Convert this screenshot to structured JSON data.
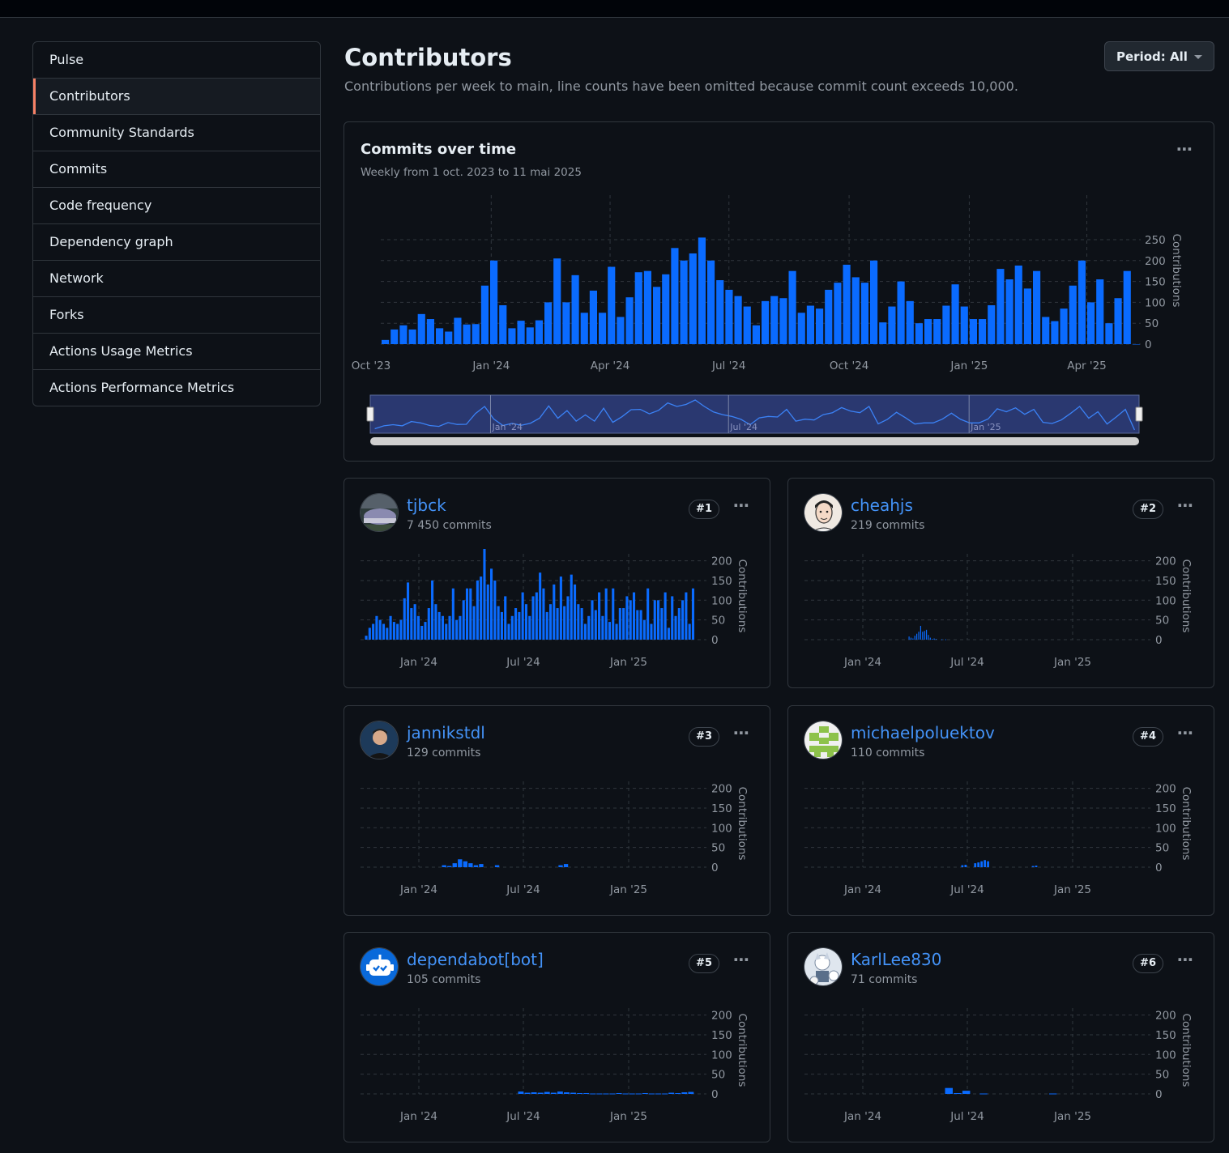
{
  "sidebar": {
    "items": [
      {
        "label": "Pulse"
      },
      {
        "label": "Contributors"
      },
      {
        "label": "Community Standards"
      },
      {
        "label": "Commits"
      },
      {
        "label": "Code frequency"
      },
      {
        "label": "Dependency graph"
      },
      {
        "label": "Network"
      },
      {
        "label": "Forks"
      },
      {
        "label": "Actions Usage Metrics"
      },
      {
        "label": "Actions Performance Metrics"
      }
    ],
    "active_index": 1
  },
  "header": {
    "title": "Contributors",
    "subtitle": "Contributions per week to main, line counts have been omitted because commit count exceeds 10,000.",
    "period_label": "Period: All"
  },
  "main_chart": {
    "title": "Commits over time",
    "subtitle": "Weekly from 1 oct. 2023 to 11 mai 2025",
    "more_label": "..."
  },
  "colors": {
    "bar": "#0a6bff",
    "accent_link": "#4493f8",
    "active_border": "#f78166",
    "brush_fill": "#2a3870"
  },
  "chart_data": [
    {
      "type": "bar",
      "title": "Commits over time",
      "ylabel": "Contributions",
      "x_ticks": [
        "Oct '23",
        "Jan '24",
        "Apr '24",
        "Jul '24",
        "Oct '24",
        "Jan '25",
        "Apr '25"
      ],
      "y_ticks": [
        0,
        50,
        100,
        150,
        200,
        250
      ],
      "ylim": [
        0,
        310
      ],
      "x_range": [
        "2023-10-01",
        "2025-05-11"
      ],
      "navigator_ticks": [
        "Jan '24",
        "Jul '24",
        "Jan '25"
      ],
      "values": [
        10,
        35,
        45,
        35,
        72,
        60,
        38,
        30,
        63,
        47,
        48,
        140,
        200,
        93,
        38,
        56,
        40,
        57,
        100,
        205,
        100,
        165,
        75,
        128,
        75,
        185,
        65,
        112,
        172,
        175,
        137,
        167,
        230,
        200,
        217,
        255,
        200,
        153,
        130,
        115,
        90,
        45,
        103,
        115,
        110,
        175,
        75,
        92,
        85,
        130,
        147,
        190,
        160,
        147,
        200,
        52,
        90,
        150,
        103,
        50,
        60,
        60,
        92,
        143,
        90,
        60,
        60,
        93,
        180,
        155,
        188,
        133,
        175,
        65,
        55,
        85,
        140,
        200,
        100,
        155,
        50,
        110,
        175,
        0
      ]
    },
    {
      "type": "bar",
      "series_name": "tjbck",
      "ylabel": "Contributions",
      "x_ticks": [
        "Jan '24",
        "Jul '24",
        "Jan '25"
      ],
      "y_ticks": [
        0,
        50,
        100,
        150,
        200
      ],
      "ylim": [
        0,
        230
      ],
      "values": [
        10,
        30,
        40,
        60,
        50,
        40,
        30,
        60,
        45,
        40,
        50,
        105,
        145,
        80,
        90,
        60,
        35,
        45,
        80,
        150,
        90,
        70,
        60,
        40,
        60,
        130,
        50,
        60,
        100,
        130,
        130,
        85,
        150,
        160,
        230,
        140,
        180,
        150,
        85,
        70,
        110,
        40,
        60,
        80,
        70,
        120,
        90,
        60,
        110,
        120,
        170,
        130,
        70,
        90,
        140,
        80,
        160,
        85,
        110,
        165,
        140,
        90,
        80,
        40,
        60,
        100,
        75,
        120,
        60,
        130,
        45,
        130,
        40,
        80,
        80,
        110,
        100,
        120,
        75,
        75,
        50,
        130,
        40,
        100,
        100,
        80,
        120,
        30,
        110,
        60,
        80,
        100,
        120,
        40,
        130,
        0
      ]
    },
    {
      "type": "bar",
      "series_name": "cheahjs",
      "ylabel": "Contributions",
      "x_ticks": [
        "Jan '24",
        "Jul '24",
        "Jan '25"
      ],
      "y_ticks": [
        0,
        50,
        100,
        150,
        200
      ],
      "ylim": [
        0,
        230
      ],
      "values": [
        8,
        5,
        3,
        10,
        15,
        20,
        35,
        20,
        22,
        25,
        12,
        5,
        2,
        3,
        2,
        0,
        0,
        1,
        0,
        1,
        0,
        0,
        0,
        0,
        0,
        0
      ]
    },
    {
      "type": "bar",
      "series_name": "jannikstdl",
      "ylabel": "Contributions",
      "x_ticks": [
        "Jan '24",
        "Jul '24",
        "Jan '25"
      ],
      "y_ticks": [
        0,
        50,
        100,
        150,
        200
      ],
      "ylim": [
        0,
        230
      ],
      "values": [
        5,
        3,
        10,
        20,
        15,
        10,
        5,
        8,
        0,
        0,
        5,
        0,
        0,
        0,
        0,
        0,
        0,
        0,
        0,
        0,
        0,
        0,
        5,
        8,
        0,
        0
      ]
    },
    {
      "type": "bar",
      "series_name": "michaelpoluektov",
      "ylabel": "Contributions",
      "x_ticks": [
        "Jan '24",
        "Jul '24",
        "Jan '25"
      ],
      "y_ticks": [
        0,
        50,
        100,
        150,
        200
      ],
      "ylim": [
        0,
        230
      ],
      "values": [
        5,
        6,
        0,
        0,
        10,
        12,
        15,
        18,
        15,
        0,
        0,
        0,
        0,
        0,
        0,
        0,
        0,
        0,
        0,
        0,
        0,
        0,
        3,
        4,
        0,
        0
      ]
    },
    {
      "type": "bar",
      "series_name": "dependabot[bot]",
      "ylabel": "Contributions",
      "x_ticks": [
        "Jan '24",
        "Jul '24",
        "Jan '25"
      ],
      "y_ticks": [
        0,
        50,
        100,
        150,
        200
      ],
      "ylim": [
        0,
        230
      ],
      "values": [
        6,
        3,
        4,
        3,
        5,
        3,
        6,
        4,
        3,
        2,
        2,
        1,
        1,
        1,
        1,
        2,
        1,
        1,
        1,
        2,
        1,
        1,
        1,
        3,
        2,
        4,
        5
      ]
    },
    {
      "type": "bar",
      "series_name": "KarlLee830",
      "ylabel": "Contributions",
      "x_ticks": [
        "Jan '24",
        "Jul '24",
        "Jan '25"
      ],
      "y_ticks": [
        0,
        50,
        100,
        150,
        200
      ],
      "ylim": [
        0,
        230
      ],
      "values": [
        15,
        2,
        8,
        0,
        1,
        0,
        0,
        0,
        0,
        0,
        0,
        0,
        1,
        0,
        0,
        0,
        0,
        0,
        0,
        0,
        0,
        0,
        0,
        0
      ]
    }
  ],
  "contributors": [
    {
      "login": "tjbck",
      "commits": "7 450 commits",
      "rank": "#1",
      "avatar": "avatar-photo-icon"
    },
    {
      "login": "cheahjs",
      "commits": "219 commits",
      "rank": "#2",
      "avatar": "avatar-portrait-icon"
    },
    {
      "login": "jannikstdl",
      "commits": "129 commits",
      "rank": "#3",
      "avatar": "avatar-person-icon"
    },
    {
      "login": "michaelpoluektov",
      "commits": "110 commits",
      "rank": "#4",
      "avatar": "avatar-identicon-icon"
    },
    {
      "login": "dependabot[bot]",
      "commits": "105 commits",
      "rank": "#5",
      "avatar": "dependabot-robot-icon"
    },
    {
      "login": "KarlLee830",
      "commits": "71 commits",
      "rank": "#6",
      "avatar": "avatar-anime-icon"
    }
  ]
}
